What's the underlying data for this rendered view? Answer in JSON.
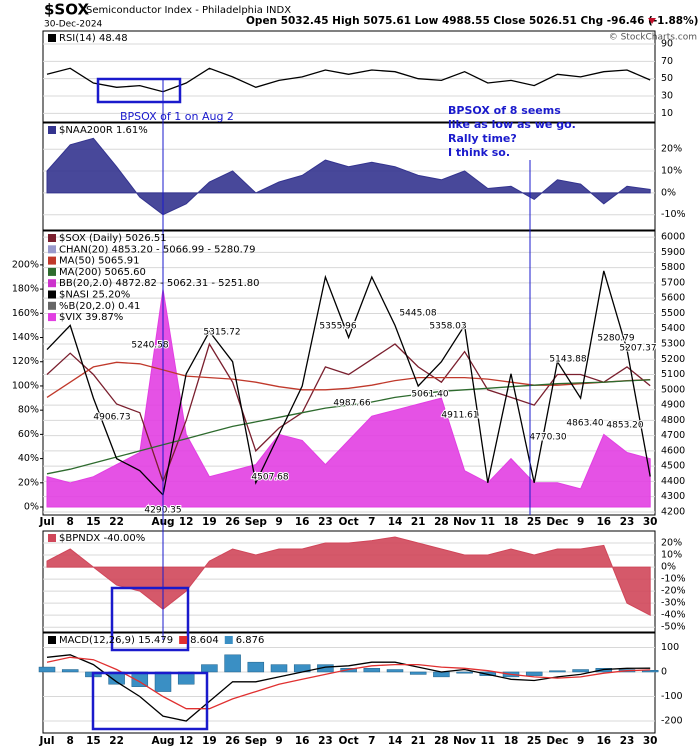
{
  "header": {
    "symbol": "$SOX",
    "name": "Semiconductor Index - Philadelphia INDX",
    "date": "30-Dec-2024",
    "quote": "Open 5032.45  High 5075.61  Low 4988.55  Close 5026.51  Chg -96.46 (-1.88%)",
    "credit": "© StockCharts.com"
  },
  "chart_data": [
    {
      "type": "line",
      "grid": true,
      "ylim": [
        0,
        105
      ],
      "yticks": [
        10,
        30,
        50,
        70,
        90
      ],
      "series": [
        {
          "name": "RSI(14) 48.48",
          "color": "#000000",
          "style": "line",
          "values": [
            55,
            62,
            45,
            40,
            42,
            35,
            45,
            62,
            52,
            40,
            48,
            52,
            60,
            55,
            60,
            58,
            50,
            48,
            58,
            45,
            48,
            42,
            55,
            52,
            58,
            60,
            48.48
          ]
        }
      ],
      "annotations": [
        "BPSOX of 1 on Aug 2"
      ]
    },
    {
      "type": "area",
      "grid": true,
      "ylim": [
        -17,
        32
      ],
      "yticks": [
        {
          "value": 20,
          "label": "20%"
        },
        {
          "value": 10,
          "label": "10%"
        },
        {
          "value": 0,
          "label": "0%"
        },
        {
          "value": -10,
          "label": "-10%"
        }
      ],
      "series": [
        {
          "name": "$NAA200R 1.61%",
          "color": "#34348f",
          "style": "area",
          "values": [
            10,
            22,
            25,
            12,
            -2,
            -10,
            -5,
            5,
            10,
            0,
            5,
            8,
            15,
            12,
            14,
            12,
            8,
            6,
            10,
            2,
            3,
            -3,
            6,
            4,
            -5,
            3,
            1.61
          ]
        }
      ],
      "annotations": [
        "BPSOX of 8 seems",
        "like as low as we go.",
        "Rally time?",
        "I think so."
      ]
    },
    {
      "type": "line",
      "grid": true,
      "categories": [
        "Jul",
        "8",
        "15",
        "22",
        null,
        "Aug",
        "12",
        "19",
        "26",
        "Sep",
        "9",
        "16",
        "23",
        "Oct",
        "7",
        "14",
        "21",
        "28",
        "Nov",
        "11",
        "18",
        "25",
        "Dec",
        "9",
        "16",
        "23",
        "30"
      ],
      "ylim": [
        4180,
        6040
      ],
      "yticks": [
        4200,
        4300,
        4400,
        4500,
        4600,
        4700,
        4800,
        4900,
        5000,
        5100,
        5200,
        5300,
        5400,
        5500,
        5600,
        5700,
        5800,
        5900,
        6000
      ],
      "y2lim": [
        -6.6,
        228
      ],
      "y2ticks": [
        {
          "value": 0,
          "label": "0%"
        },
        {
          "value": 20,
          "label": "20%"
        },
        {
          "value": 40,
          "label": "40%"
        },
        {
          "value": 60,
          "label": "60%"
        },
        {
          "value": 80,
          "label": "80%"
        },
        {
          "value": 100,
          "label": "100%"
        },
        {
          "value": 120,
          "label": "120%"
        },
        {
          "value": 140,
          "label": "140%"
        },
        {
          "value": 160,
          "label": "160%"
        },
        {
          "value": 180,
          "label": "180%"
        },
        {
          "value": 200,
          "label": "200%"
        }
      ],
      "series": [
        {
          "name": "$SOX (Daily) 5026.51",
          "color": "#7a1f2e",
          "style": "line",
          "values": [
            5100,
            5240,
            5100,
            4907,
            4850,
            4400,
            4800,
            5300,
            5050,
            4600,
            4750,
            4850,
            5150,
            5100,
            5200,
            5300,
            5150,
            5050,
            5250,
            5000,
            4950,
            4900,
            5100,
            5100,
            5050,
            5150,
            5026.51
          ]
        },
        {
          "name": "CHAN(20) 4853.20 - 5066.99 - 5280.79",
          "color": "#9999cc"
        },
        {
          "name": "MA(50) 5065.91",
          "color": "#c0392b",
          "style": "line",
          "values": [
            4950,
            5050,
            5150,
            5180,
            5170,
            5130,
            5090,
            5080,
            5070,
            5050,
            5020,
            5000,
            5000,
            5010,
            5030,
            5060,
            5080,
            5080,
            5080,
            5070,
            5050,
            5030,
            5030,
            5040,
            5050,
            5060,
            5065.91
          ]
        },
        {
          "name": "MA(200) 5065.60",
          "color": "#2e6b2e",
          "style": "line",
          "values": [
            4450,
            4480,
            4520,
            4560,
            4600,
            4640,
            4680,
            4720,
            4760,
            4790,
            4820,
            4850,
            4880,
            4900,
            4920,
            4950,
            4970,
            4990,
            5000,
            5010,
            5020,
            5030,
            5040,
            5045,
            5050,
            5058,
            5065.6
          ]
        },
        {
          "name": "BB(20,2.0) 4872.82 - 5062.31 - 5251.80",
          "color": "#cc33cc"
        },
        {
          "name": "$NASI 25.20%",
          "color": "#000000",
          "style": "line",
          "axis": "y2",
          "values": [
            130,
            150,
            90,
            40,
            30,
            10,
            110,
            145,
            120,
            20,
            60,
            100,
            190,
            140,
            190,
            150,
            100,
            120,
            150,
            20,
            110,
            20,
            120,
            90,
            195,
            130,
            25.2
          ]
        },
        {
          "name": "%B(20,2.0) 0.41",
          "color": "#666666"
        },
        {
          "name": "$VIX 39.87%",
          "color": "#e23fe2",
          "style": "area",
          "axis": "y2",
          "values": [
            25,
            20,
            25,
            35,
            45,
            180,
            60,
            25,
            30,
            35,
            60,
            55,
            35,
            55,
            75,
            80,
            85,
            90,
            30,
            20,
            40,
            20,
            20,
            15,
            60,
            45,
            39.87
          ]
        }
      ],
      "price_labels": [
        5240.58,
        4906.73,
        4290.35,
        5315.72,
        4507.68,
        5355.96,
        4987.66,
        5445.08,
        5358.03,
        {
          "value": 5061.4,
          "label": "5061.40"
        },
        4911.61,
        {
          "value": 4770.3,
          "label": "4770.30"
        },
        5143.88,
        {
          "value": 4863.4,
          "label": "4863.40"
        },
        5280.79,
        {
          "value": 4853.2,
          "label": "4853.20"
        },
        5207.37
      ]
    },
    {
      "type": "area",
      "grid": true,
      "ylim": [
        -54,
        30
      ],
      "yticks": [
        {
          "value": 20,
          "label": "20%"
        },
        {
          "value": 10,
          "label": "10%"
        },
        {
          "value": 0,
          "label": "0%"
        },
        {
          "value": -10,
          "label": "-10%"
        },
        {
          "value": -20,
          "label": "-20%"
        },
        {
          "value": -30,
          "label": "-30%"
        },
        {
          "value": -40,
          "label": "-40%"
        },
        {
          "value": -50,
          "label": "-50%"
        }
      ],
      "series": [
        {
          "name": "$BPNDX -40.00%",
          "color": "#d0475a",
          "style": "area",
          "values": [
            5,
            15,
            0,
            -15,
            -20,
            -35,
            -20,
            5,
            15,
            10,
            15,
            15,
            20,
            20,
            22,
            25,
            20,
            15,
            10,
            10,
            15,
            10,
            15,
            15,
            18,
            -30,
            -40
          ]
        }
      ]
    },
    {
      "type": "line",
      "grid": true,
      "categories": [
        "Jul",
        "8",
        "15",
        "22",
        null,
        "Aug",
        "12",
        "19",
        "26",
        "Sep",
        "9",
        "16",
        "23",
        "Oct",
        "7",
        "14",
        "21",
        "28",
        "Nov",
        "11",
        "18",
        "25",
        "Dec",
        "9",
        "16",
        "23",
        "30"
      ],
      "ylim": [
        -249,
        159
      ],
      "yticks": [
        100,
        0,
        -100,
        -200
      ],
      "series": [
        {
          "name": "MACD(12,26,9) 15.479",
          "color": "#000000",
          "style": "line",
          "values": [
            60,
            70,
            30,
            -40,
            -100,
            -180,
            -200,
            -120,
            -40,
            -40,
            -20,
            0,
            20,
            25,
            40,
            40,
            20,
            0,
            10,
            -10,
            -30,
            -35,
            -20,
            -10,
            10,
            15,
            15.479
          ]
        },
        {
          "name": "8.604",
          "color": "#e03030",
          "style": "line",
          "values": [
            40,
            60,
            50,
            10,
            -40,
            -100,
            -150,
            -150,
            -110,
            -80,
            -50,
            -30,
            -10,
            10,
            25,
            30,
            30,
            20,
            15,
            5,
            -10,
            -20,
            -25,
            -20,
            -5,
            5,
            8.604
          ]
        },
        {
          "name": "6.876",
          "color": "#3a8fc4",
          "style": "bar",
          "values": [
            20,
            10,
            -20,
            -50,
            -60,
            -80,
            -50,
            30,
            70,
            40,
            30,
            30,
            30,
            15,
            15,
            10,
            -10,
            -20,
            -5,
            -15,
            -20,
            -15,
            5,
            10,
            15,
            10,
            6.876
          ]
        }
      ]
    }
  ]
}
